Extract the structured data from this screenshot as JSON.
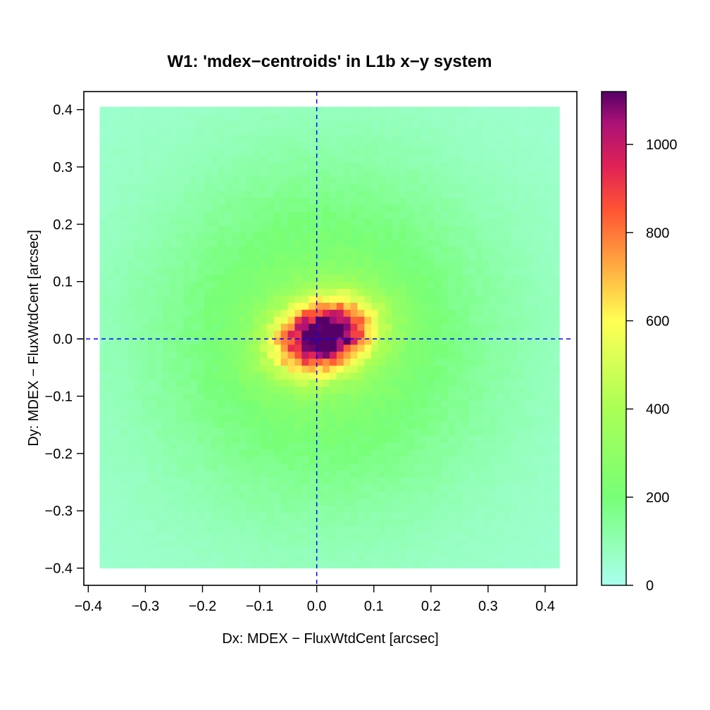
{
  "chart_data": {
    "type": "heatmap",
    "title": "W1: 'mdex−centroids' in L1b x−y system",
    "xlabel": "Dx: MDEX − FluxWtdCent [arcsec]",
    "ylabel": "Dy: MDEX − FluxWtdCent [arcsec]",
    "xlim": [
      -0.4078,
      0.4555
    ],
    "ylim": [
      -0.43,
      0.4315
    ],
    "x_ticks": [
      -0.4,
      -0.3,
      -0.2,
      -0.1,
      0.0,
      0.1,
      0.2,
      0.3,
      0.4
    ],
    "x_tick_labels": [
      "−0.4",
      "−0.3",
      "−0.2",
      "−0.1",
      "0.0",
      "0.1",
      "0.2",
      "0.3",
      "0.4"
    ],
    "y_ticks": [
      -0.4,
      -0.3,
      -0.2,
      -0.1,
      0.0,
      0.1,
      0.2,
      0.3,
      0.4
    ],
    "y_tick_labels": [
      "−0.4",
      "−0.3",
      "−0.2",
      "−0.1",
      "0.0",
      "0.1",
      "0.2",
      "0.3",
      "0.4"
    ],
    "bins": {
      "x_range": [
        -0.38,
        0.425
      ],
      "y_range": [
        -0.4,
        0.405
      ],
      "nx": 66,
      "ny": 66
    },
    "density_model": {
      "peak_count": 1120,
      "center": [
        0.012,
        0.005
      ],
      "core_sigma": [
        0.06,
        0.042
      ],
      "core_amplitude": 1000,
      "halo_sigma": [
        0.2,
        0.2
      ],
      "halo_amplitude": 240,
      "background": 50
    },
    "reference_lines": {
      "x": 0.0,
      "y": 0.0,
      "color": "#0000ff",
      "style": "dashed"
    },
    "colorbar": {
      "range": [
        0,
        1120
      ],
      "ticks": [
        0,
        200,
        400,
        600,
        800,
        1000
      ],
      "tick_labels": [
        "0",
        "200",
        "400",
        "600",
        "800",
        "1000"
      ],
      "colors": [
        [
          0,
          "#aaffee"
        ],
        [
          200,
          "#77ff77"
        ],
        [
          400,
          "#aaff55"
        ],
        [
          600,
          "#ffff55"
        ],
        [
          700,
          "#ffbb44"
        ],
        [
          850,
          "#ff5533"
        ],
        [
          950,
          "#e02255"
        ],
        [
          1050,
          "#aa1177"
        ],
        [
          1120,
          "#550066"
        ]
      ]
    },
    "grid": false
  }
}
